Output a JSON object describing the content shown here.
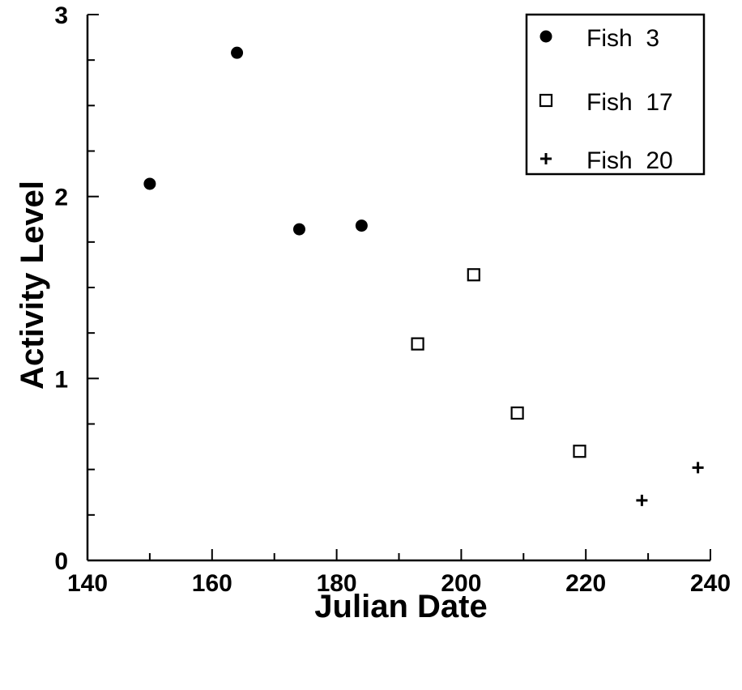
{
  "chart_data": {
    "type": "scatter",
    "title": "",
    "xlabel": "Julian Date",
    "ylabel": "Activity  Level",
    "xlim": [
      140,
      240
    ],
    "ylim": [
      0,
      3
    ],
    "x_ticks": [
      140,
      160,
      180,
      200,
      220,
      240
    ],
    "x_tick_labels": [
      "140",
      "160",
      "180",
      "200",
      "220",
      "240"
    ],
    "y_ticks": [
      0,
      1,
      2,
      3
    ],
    "y_tick_labels": [
      "0",
      "1",
      "2",
      "3"
    ],
    "grid": false,
    "legend_position": "top-right",
    "series": [
      {
        "name": "Fish  3",
        "marker": "filled-circle",
        "points": [
          {
            "x": 150,
            "y": 2.07
          },
          {
            "x": 164,
            "y": 2.79
          },
          {
            "x": 174,
            "y": 1.82
          },
          {
            "x": 184,
            "y": 1.84
          }
        ]
      },
      {
        "name": "Fish  17",
        "marker": "open-square",
        "points": [
          {
            "x": 193,
            "y": 1.19
          },
          {
            "x": 202,
            "y": 1.57
          },
          {
            "x": 209,
            "y": 0.81
          },
          {
            "x": 219,
            "y": 0.6
          }
        ]
      },
      {
        "name": "Fish  20",
        "marker": "plus",
        "points": [
          {
            "x": 229,
            "y": 0.33
          },
          {
            "x": 238,
            "y": 0.51
          }
        ]
      }
    ]
  }
}
